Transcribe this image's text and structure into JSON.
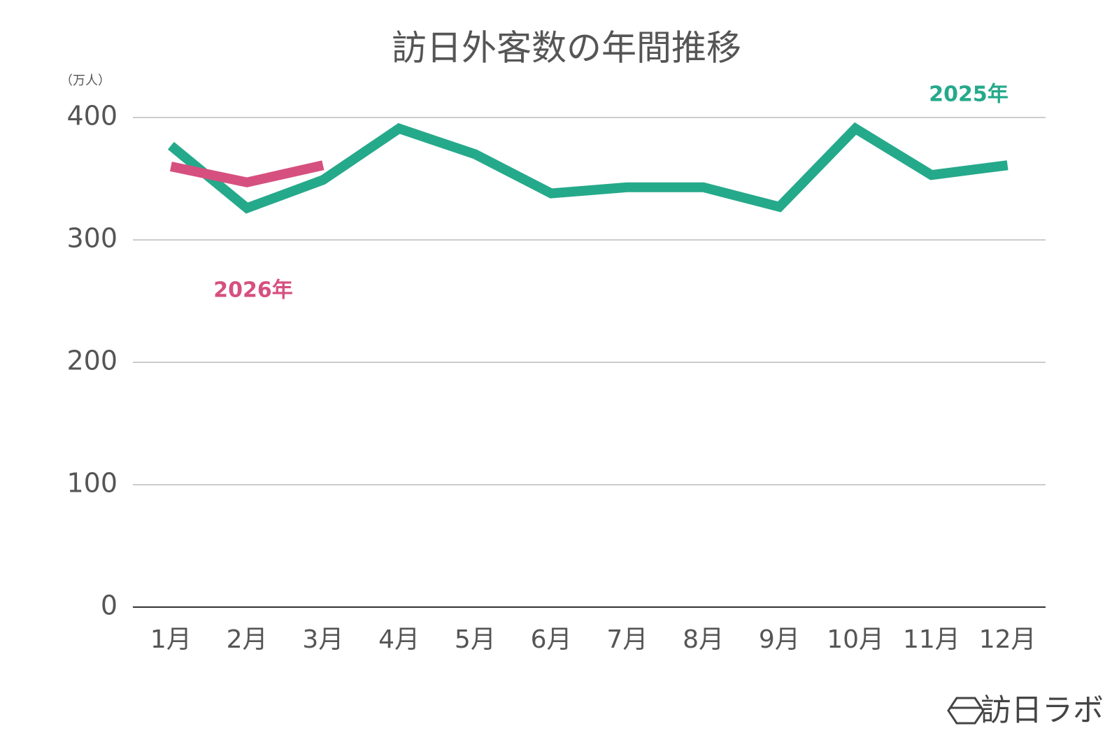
{
  "chart_data": {
    "type": "line",
    "title": "訪日外客数の年間推移",
    "y_label": "（万人）",
    "categories": [
      "1月",
      "2月",
      "3月",
      "4月",
      "5月",
      "6月",
      "7月",
      "8月",
      "9月",
      "10月",
      "11月",
      "12月"
    ],
    "series": [
      {
        "name": "2025年",
        "color": "#25a98b",
        "values": [
          377,
          326,
          349,
          391,
          370,
          338,
          343,
          343,
          327,
          391,
          353,
          361
        ]
      },
      {
        "name": "2026年",
        "color": "#d6507f",
        "values": [
          360,
          347,
          361,
          null,
          null,
          null,
          null,
          null,
          null,
          null,
          null,
          null
        ]
      }
    ],
    "ylim": [
      0,
      400
    ],
    "yticks": [
      0,
      100,
      200,
      300,
      400
    ],
    "grid": true
  },
  "watermark": "訪日ラボ"
}
